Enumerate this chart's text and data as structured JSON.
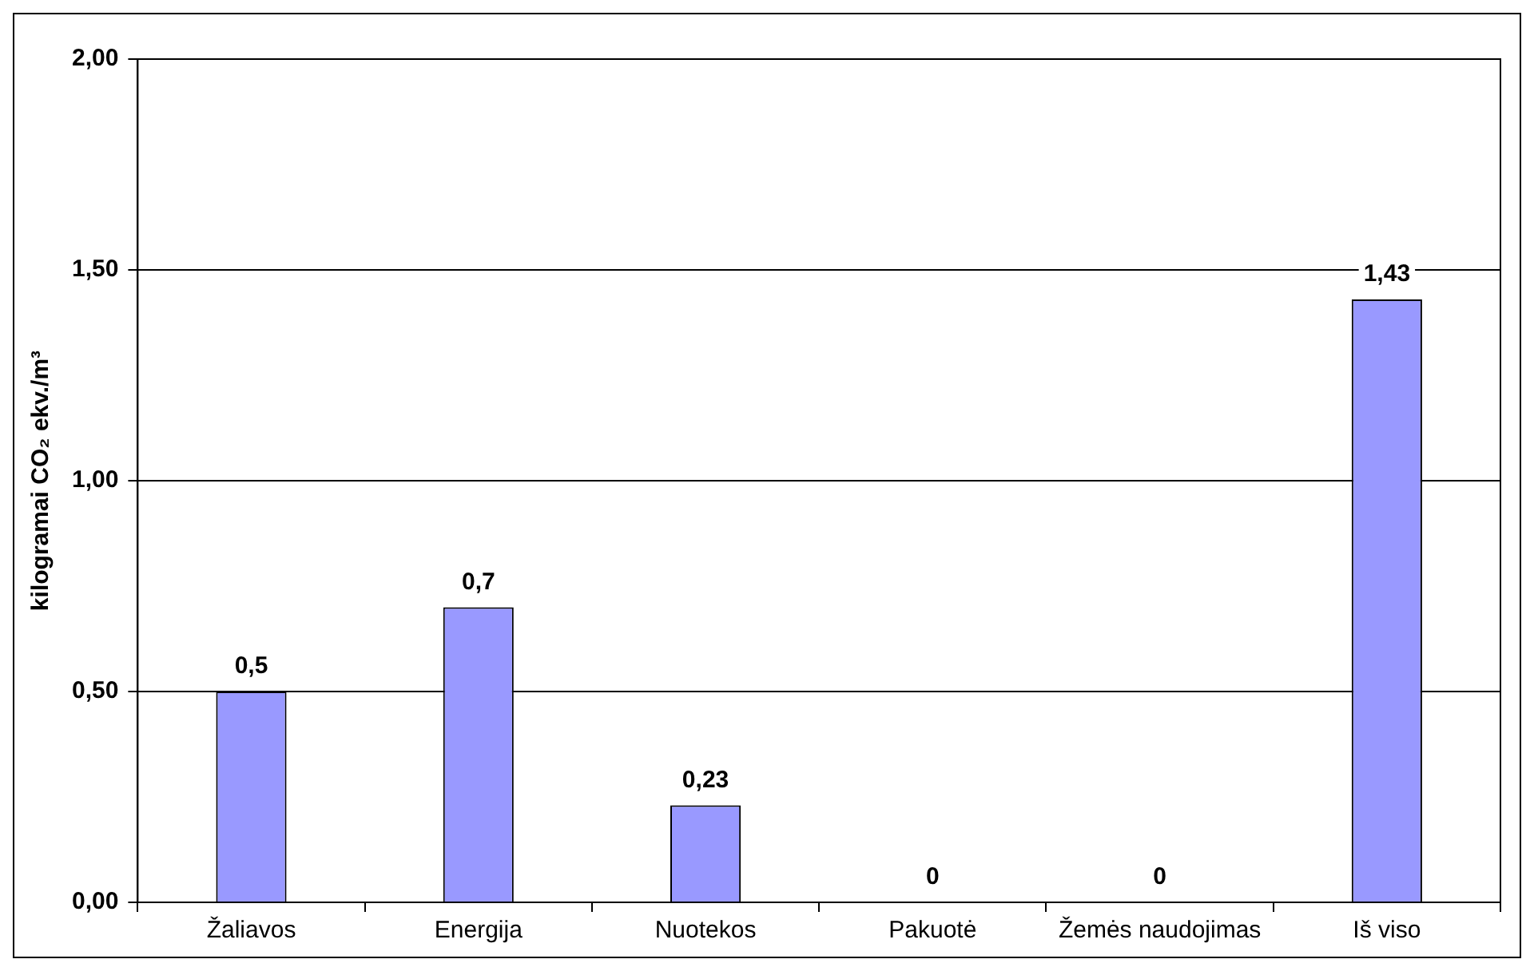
{
  "chart_data": {
    "type": "bar",
    "ylabel": "kilogramai CO₂ ekv./m³",
    "categories": [
      "Žaliavos",
      "Energija",
      "Nuotekos",
      "Pakuotė",
      "Žemės naudojimas",
      "Iš viso"
    ],
    "values": [
      0.5,
      0.7,
      0.23,
      0,
      0,
      1.43
    ],
    "value_labels": [
      "0,5",
      "0,7",
      "0,23",
      "0",
      "0",
      "1,43"
    ],
    "color": "#9999ff",
    "ylim": [
      0,
      2
    ],
    "yticks": [
      {
        "value": 0,
        "label": "0,00"
      },
      {
        "value": 0.5,
        "label": "0,50"
      },
      {
        "value": 1,
        "label": "1,00"
      },
      {
        "value": 1.5,
        "label": "1,50"
      },
      {
        "value": 2,
        "label": "2,00"
      }
    ],
    "grid": "y",
    "legend": false
  }
}
